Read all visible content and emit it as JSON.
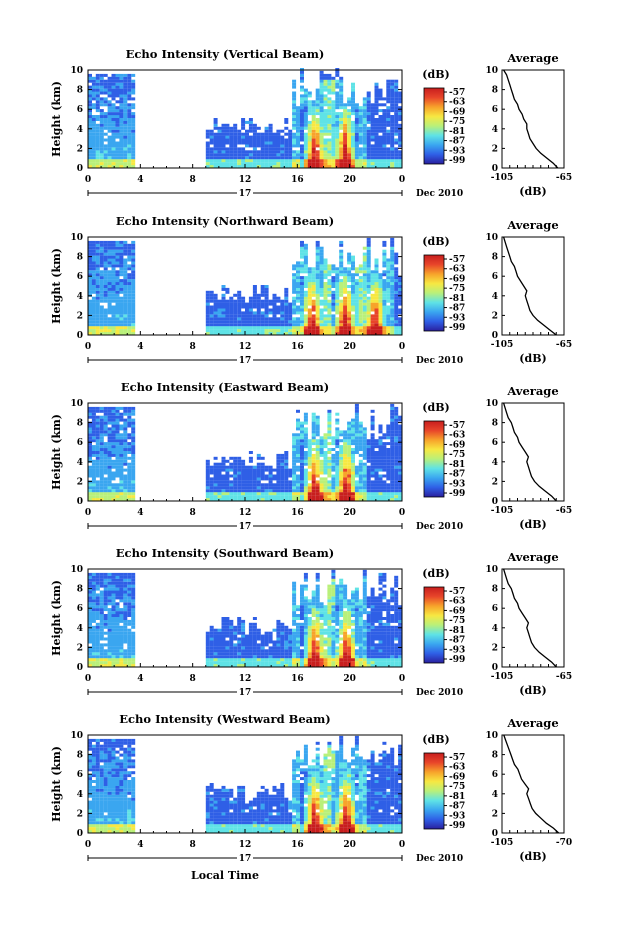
{
  "figure": {
    "x_label": "Local Time",
    "panel_titles": [
      "Echo Intensity (Vertical Beam)",
      "Echo Intensity (Northward Beam)",
      "Echo Intensity (Eastward Beam)",
      "Echo Intensity (Southward Beam)",
      "Echo Intensity (Westward Beam)"
    ],
    "y_label": "Height (km)",
    "y_ticks": [
      "0",
      "2",
      "4",
      "6",
      "8",
      "10"
    ],
    "x_ticks": [
      "0",
      "4",
      "8",
      "12",
      "16",
      "20",
      "0"
    ],
    "date_marker": "17",
    "date_label": "Dec 2010",
    "colorbar_unit": "(dB)",
    "colorbar_ticks": [
      "-57",
      "-63",
      "-69",
      "-75",
      "-81",
      "-87",
      "-93",
      "-99"
    ],
    "profile_title": "Average",
    "profile_x_label": "(dB)"
  },
  "colors": {
    "scale": [
      "#2a1f9e",
      "#2f5fe6",
      "#3aa6f0",
      "#5fe3e6",
      "#b9f07a",
      "#f7e842",
      "#f7a32b",
      "#e8452a",
      "#c81e1e"
    ]
  },
  "chart_data": [
    {
      "type": "heatmap",
      "title": "Echo Intensity (Vertical Beam)",
      "xlabel": "Local Time",
      "ylabel": "Height (km)",
      "xlim": [
        0,
        24
      ],
      "ylim": [
        0,
        10
      ],
      "colorbar_range_db": [
        -99,
        -57
      ],
      "cloud_segments_hours": [
        [
          0,
          3.3
        ],
        [
          9,
          24
        ]
      ],
      "strong_echo_peaks_hours": [
        17.2,
        19.5
      ],
      "profile": {
        "title": "Average",
        "xlabel": "(dB)",
        "xlim": [
          -105,
          -65
        ],
        "xticks": [
          "-105",
          "-65"
        ],
        "height_km": [
          0,
          0.5,
          1,
          1.5,
          2,
          2.5,
          3,
          3.5,
          4,
          4.5,
          5,
          5.5,
          6,
          6.5,
          7,
          7.5,
          8,
          8.5,
          9,
          9.5,
          10
        ],
        "db": [
          -69,
          -72,
          -76,
          -80,
          -83,
          -85,
          -87,
          -88,
          -89,
          -89,
          -91,
          -92,
          -94,
          -95,
          -97,
          -98,
          -99,
          -100,
          -101,
          -102,
          -104
        ]
      }
    },
    {
      "type": "heatmap",
      "title": "Echo Intensity (Northward Beam)",
      "xlabel": "Local Time",
      "ylabel": "Height (km)",
      "xlim": [
        0,
        24
      ],
      "ylim": [
        0,
        10
      ],
      "colorbar_range_db": [
        -99,
        -57
      ],
      "cloud_segments_hours": [
        [
          0,
          3.3
        ],
        [
          9,
          24
        ]
      ],
      "strong_echo_peaks_hours": [
        17.0,
        19.5,
        21.8
      ],
      "profile": {
        "title": "Average",
        "xlabel": "(dB)",
        "xlim": [
          -105,
          -65
        ],
        "xticks": [
          "-105",
          "-65"
        ],
        "height_km": [
          0,
          0.5,
          1,
          1.5,
          2,
          2.5,
          3,
          3.5,
          4,
          4.5,
          5,
          5.5,
          6,
          6.5,
          7,
          7.5,
          8,
          8.5,
          9,
          9.5,
          10
        ],
        "db": [
          -70,
          -74,
          -78,
          -82,
          -85,
          -87,
          -88,
          -89,
          -90,
          -89,
          -91,
          -93,
          -95,
          -96,
          -97,
          -99,
          -100,
          -101,
          -102,
          -103,
          -104
        ]
      }
    },
    {
      "type": "heatmap",
      "title": "Echo Intensity (Eastward Beam)",
      "xlabel": "Local Time",
      "ylabel": "Height (km)",
      "xlim": [
        0,
        24
      ],
      "ylim": [
        0,
        10
      ],
      "colorbar_range_db": [
        -99,
        -57
      ],
      "cloud_segments_hours": [
        [
          0,
          3.3
        ],
        [
          9,
          24
        ]
      ],
      "strong_echo_peaks_hours": [
        17.2,
        19.6
      ],
      "profile": {
        "title": "Average",
        "xlabel": "(dB)",
        "xlim": [
          -105,
          -65
        ],
        "xticks": [
          "-105",
          "-65"
        ],
        "height_km": [
          0,
          0.5,
          1,
          1.5,
          2,
          2.5,
          3,
          3.5,
          4,
          4.5,
          5,
          5.5,
          6,
          6.5,
          7,
          7.5,
          8,
          8.5,
          9,
          9.5,
          10
        ],
        "db": [
          -70,
          -73,
          -77,
          -81,
          -84,
          -86,
          -87,
          -88,
          -89,
          -88,
          -90,
          -92,
          -94,
          -95,
          -97,
          -98,
          -99,
          -101,
          -102,
          -103,
          -104
        ]
      }
    },
    {
      "type": "heatmap",
      "title": "Echo Intensity (Southward Beam)",
      "xlabel": "Local Time",
      "ylabel": "Height (km)",
      "xlim": [
        0,
        24
      ],
      "ylim": [
        0,
        10
      ],
      "colorbar_range_db": [
        -99,
        -57
      ],
      "cloud_segments_hours": [
        [
          0,
          3.3
        ],
        [
          9,
          24
        ]
      ],
      "strong_echo_peaks_hours": [
        17.2,
        19.6
      ],
      "profile": {
        "title": "Average",
        "xlabel": "(dB)",
        "xlim": [
          -105,
          -65
        ],
        "xticks": [
          "-105",
          "-65"
        ],
        "height_km": [
          0,
          0.5,
          1,
          1.5,
          2,
          2.5,
          3,
          3.5,
          4,
          4.5,
          5,
          5.5,
          6,
          6.5,
          7,
          7.5,
          8,
          8.5,
          9,
          9.5,
          10
        ],
        "db": [
          -70,
          -73,
          -77,
          -81,
          -84,
          -86,
          -87,
          -88,
          -89,
          -88,
          -90,
          -92,
          -94,
          -95,
          -97,
          -98,
          -99,
          -101,
          -102,
          -103,
          -104
        ]
      }
    },
    {
      "type": "heatmap",
      "title": "Echo Intensity (Westward Beam)",
      "xlabel": "Local Time",
      "ylabel": "Height (km)",
      "xlim": [
        0,
        24
      ],
      "ylim": [
        0,
        10
      ],
      "colorbar_range_db": [
        -99,
        -57
      ],
      "cloud_segments_hours": [
        [
          0,
          3.3
        ],
        [
          9,
          24
        ]
      ],
      "strong_echo_peaks_hours": [
        17.2,
        19.6
      ],
      "profile": {
        "title": "Average",
        "xlabel": "(dB)",
        "xlim": [
          -105,
          -70
        ],
        "xticks": [
          "-105",
          "-70"
        ],
        "height_km": [
          0,
          0.5,
          1,
          1.5,
          2,
          2.5,
          3,
          3.5,
          4,
          4.5,
          5,
          5.5,
          6,
          6.5,
          7,
          7.5,
          8,
          8.5,
          9,
          9.5,
          10
        ],
        "db": [
          -73,
          -76,
          -80,
          -83,
          -86,
          -88,
          -89,
          -90,
          -91,
          -90,
          -92,
          -94,
          -95,
          -96,
          -98,
          -99,
          -100,
          -101,
          -102,
          -103,
          -104
        ]
      }
    }
  ]
}
